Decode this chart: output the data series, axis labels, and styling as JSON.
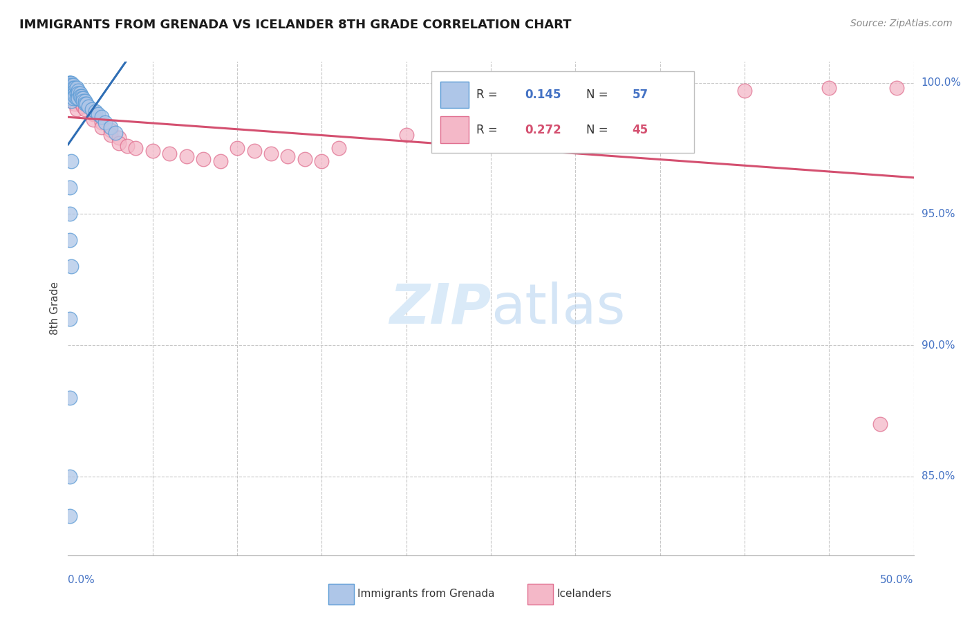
{
  "title": "IMMIGRANTS FROM GRENADA VS ICELANDER 8TH GRADE CORRELATION CHART",
  "source": "Source: ZipAtlas.com",
  "yaxis_label": "8th Grade",
  "legend_label1": "Immigrants from Grenada",
  "legend_label2": "Icelanders",
  "R_blue": 0.145,
  "N_blue": 57,
  "R_pink": 0.272,
  "N_pink": 45,
  "blue_color": "#aec6e8",
  "blue_edge": "#5b9bd5",
  "blue_line": "#2e6db4",
  "pink_color": "#f4b8c8",
  "pink_edge": "#e07090",
  "pink_line": "#d45070",
  "background": "#ffffff",
  "watermark_color": "#daeaf8",
  "grid_color": "#c8c8c8",
  "axis_label_color": "#4472c4",
  "title_color": "#1a1a1a",
  "source_color": "#888888",
  "xlim": [
    0.0,
    0.5
  ],
  "ylim": [
    0.82,
    1.008
  ],
  "yticks": [
    0.85,
    0.9,
    0.95,
    1.0
  ],
  "ytick_labels": [
    "85.0%",
    "90.0%",
    "95.0%",
    "100.0%"
  ],
  "blue_x": [
    0.001,
    0.001,
    0.001,
    0.001,
    0.001,
    0.001,
    0.001,
    0.001,
    0.001,
    0.002,
    0.002,
    0.002,
    0.002,
    0.002,
    0.002,
    0.002,
    0.003,
    0.003,
    0.003,
    0.003,
    0.003,
    0.004,
    0.004,
    0.004,
    0.004,
    0.005,
    0.005,
    0.005,
    0.006,
    0.006,
    0.006,
    0.007,
    0.007,
    0.008,
    0.008,
    0.009,
    0.009,
    0.01,
    0.01,
    0.011,
    0.012,
    0.014,
    0.016,
    0.018,
    0.02,
    0.022,
    0.025,
    0.028,
    0.001,
    0.001,
    0.002,
    0.001,
    0.001,
    0.001,
    0.002,
    0.001,
    0.001
  ],
  "blue_y": [
    1.0,
    1.0,
    1.0,
    0.999,
    0.998,
    0.997,
    0.996,
    0.995,
    0.994,
    1.0,
    0.999,
    0.998,
    0.997,
    0.996,
    0.995,
    0.993,
    0.999,
    0.998,
    0.997,
    0.996,
    0.994,
    0.998,
    0.997,
    0.996,
    0.995,
    0.998,
    0.996,
    0.994,
    0.997,
    0.996,
    0.994,
    0.996,
    0.995,
    0.995,
    0.994,
    0.994,
    0.993,
    0.993,
    0.992,
    0.992,
    0.991,
    0.99,
    0.989,
    0.988,
    0.987,
    0.985,
    0.983,
    0.981,
    0.91,
    0.88,
    0.97,
    0.96,
    0.95,
    0.94,
    0.93,
    0.85,
    0.835
  ],
  "pink_x": [
    0.001,
    0.001,
    0.002,
    0.002,
    0.003,
    0.003,
    0.004,
    0.004,
    0.005,
    0.005,
    0.006,
    0.007,
    0.008,
    0.009,
    0.01,
    0.015,
    0.015,
    0.02,
    0.02,
    0.025,
    0.025,
    0.03,
    0.03,
    0.035,
    0.04,
    0.05,
    0.06,
    0.07,
    0.08,
    0.09,
    0.1,
    0.11,
    0.12,
    0.13,
    0.14,
    0.15,
    0.16,
    0.2,
    0.25,
    0.3,
    0.35,
    0.4,
    0.45,
    0.49,
    0.48
  ],
  "pink_y": [
    0.998,
    0.996,
    0.999,
    0.995,
    0.997,
    0.993,
    0.996,
    0.992,
    0.995,
    0.99,
    0.994,
    0.993,
    0.992,
    0.991,
    0.99,
    0.988,
    0.986,
    0.985,
    0.983,
    0.982,
    0.98,
    0.979,
    0.977,
    0.976,
    0.975,
    0.974,
    0.973,
    0.972,
    0.971,
    0.97,
    0.975,
    0.974,
    0.973,
    0.972,
    0.971,
    0.97,
    0.975,
    0.98,
    0.985,
    0.99,
    0.993,
    0.997,
    0.998,
    0.998,
    0.87
  ]
}
